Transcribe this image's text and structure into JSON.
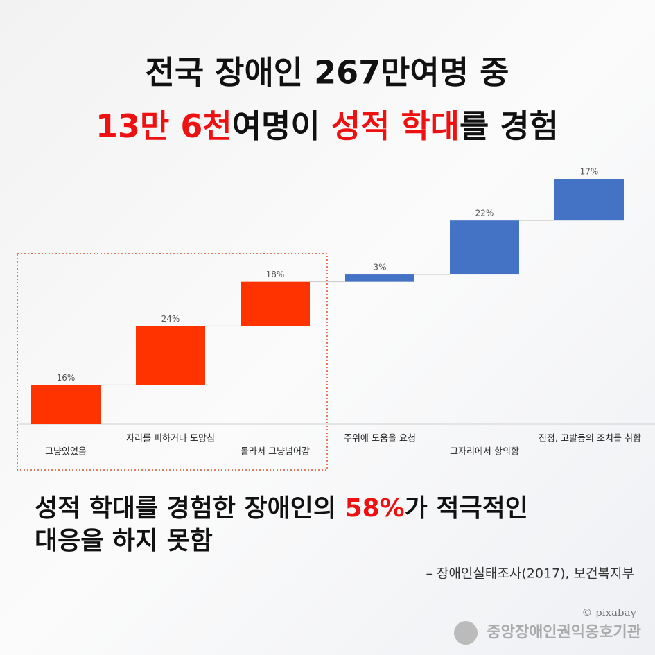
{
  "header": {
    "line1": "전국 장애인 267만여명 중",
    "line2": [
      {
        "text": "13만 6천",
        "color": "#ee1111"
      },
      {
        "text": "여명이 ",
        "color": "#111111"
      },
      {
        "text": "성적 학대",
        "color": "#ee1111"
      },
      {
        "text": "를 경험",
        "color": "#111111"
      }
    ]
  },
  "chart_data": {
    "type": "waterfall",
    "categories": [
      "그냥있었음",
      "자리를 피하거나 도망침",
      "몰라서 그냥넘어감",
      "주위에 도움을 요청",
      "그자리에서 항의함",
      "진정, 고발등의 조치를 취함"
    ],
    "values": [
      16,
      24,
      18,
      3,
      22,
      17
    ],
    "value_labels": [
      "16%",
      "24%",
      "18%",
      "3%",
      "22%",
      "17%"
    ],
    "colors": [
      "#ff3300",
      "#ff3300",
      "#ff3300",
      "#4472c4",
      "#4472c4",
      "#4472c4"
    ]
  },
  "summary": {
    "line1": [
      {
        "text": "성적 학대를 경험한 장애인의 ",
        "color": "#111111"
      },
      {
        "text": "58%",
        "color": "#ee1111"
      },
      {
        "text": "가 적극적인",
        "color": "#111111"
      }
    ],
    "line2": "대응을 하지 못함"
  },
  "source": "– 장애인실태조사(2017), 보건복지부",
  "credit": "© pixabay",
  "logo": "중앙장애인권익옹호기관"
}
